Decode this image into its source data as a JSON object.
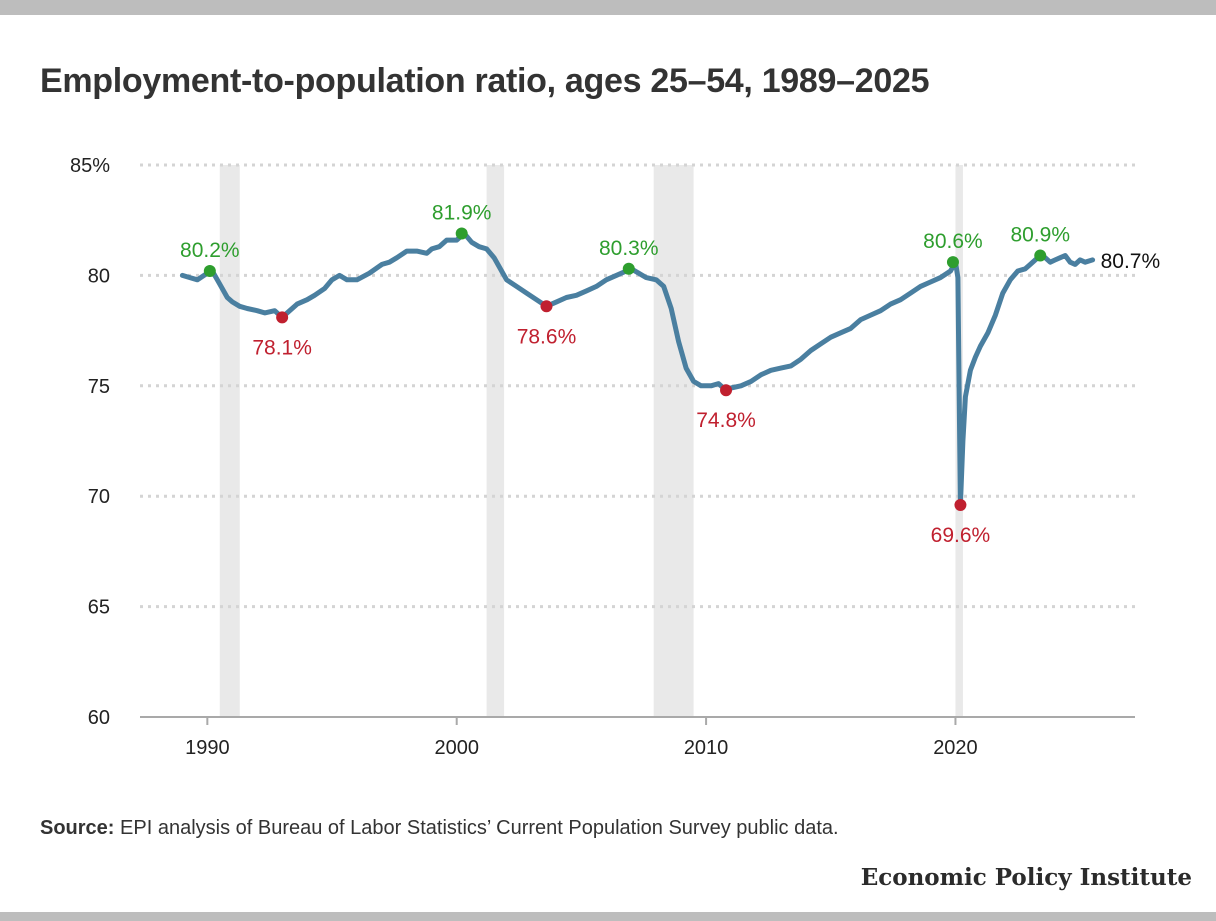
{
  "title": "Employment-to-population ratio, ages 25–54, 1989–2025",
  "source_label": "Source:",
  "source_text": "EPI analysis of Bureau of Labor Statistics’ Current Population Survey public data.",
  "brand": "Economic Policy Institute",
  "colors": {
    "line": "#4a7fa0",
    "peak": "#2e9e2e",
    "trough": "#c0202f",
    "recession": "#e9e9e9",
    "grid": "#d4d4d4"
  },
  "chart_data": {
    "type": "line",
    "title": "Employment-to-population ratio, ages 25–54, 1989–2025",
    "xlim": [
      1987.3,
      2027.2
    ],
    "ylim": [
      60,
      85
    ],
    "xticks": [
      {
        "value": 1990,
        "label": "1990"
      },
      {
        "value": 2000,
        "label": "2000"
      },
      {
        "value": 2010,
        "label": "2010"
      },
      {
        "value": 2020,
        "label": "2020"
      }
    ],
    "yticks": [
      {
        "value": 60,
        "label": "60"
      },
      {
        "value": 65,
        "label": "65"
      },
      {
        "value": 70,
        "label": "70"
      },
      {
        "value": 75,
        "label": "75"
      },
      {
        "value": 80,
        "label": "80"
      },
      {
        "value": 85,
        "label": "85%"
      }
    ],
    "grid": true,
    "recessions": [
      [
        1990.5,
        1991.3
      ],
      [
        2001.2,
        2001.9
      ],
      [
        2007.9,
        2009.5
      ],
      [
        2020.0,
        2020.3
      ]
    ],
    "series": [
      {
        "x": [
          1989.0,
          1989.3,
          1989.6,
          1990.0,
          1990.2,
          1990.5,
          1990.8,
          1991.0,
          1991.3,
          1991.6,
          1992.0,
          1992.3,
          1992.7,
          1993.0,
          1993.3,
          1993.6,
          1994.0,
          1994.3,
          1994.7,
          1995.0,
          1995.3,
          1995.6,
          1996.0,
          1996.5,
          1997.0,
          1997.3,
          1997.6,
          1998.0,
          1998.4,
          1998.8,
          1999.0,
          1999.3,
          1999.6,
          2000.0,
          2000.3,
          2000.6,
          2000.9,
          2001.2,
          2001.5,
          2001.8,
          2002.0,
          2002.4,
          2002.8,
          2003.2,
          2003.6,
          2004.0,
          2004.4,
          2004.8,
          2005.2,
          2005.6,
          2006.0,
          2006.4,
          2006.8,
          2007.0,
          2007.3,
          2007.6,
          2008.0,
          2008.3,
          2008.6,
          2008.9,
          2009.2,
          2009.5,
          2009.8,
          2010.2,
          2010.5,
          2010.8,
          2011.0,
          2011.4,
          2011.8,
          2012.2,
          2012.6,
          2013.0,
          2013.4,
          2013.8,
          2014.2,
          2014.6,
          2015.0,
          2015.4,
          2015.8,
          2016.2,
          2016.6,
          2017.0,
          2017.4,
          2017.8,
          2018.2,
          2018.6,
          2019.0,
          2019.4,
          2019.8,
          2020.0,
          2020.1,
          2020.2,
          2020.3,
          2020.4,
          2020.6,
          2020.8,
          2021.0,
          2021.3,
          2021.6,
          2021.9,
          2022.2,
          2022.5,
          2022.8,
          2023.0,
          2023.2,
          2023.4,
          2023.6,
          2023.8,
          2024.0,
          2024.2,
          2024.4,
          2024.6,
          2024.8,
          2025.0,
          2025.2,
          2025.5
        ],
        "y": [
          80.0,
          79.9,
          79.8,
          80.1,
          80.2,
          79.6,
          79.0,
          78.8,
          78.6,
          78.5,
          78.4,
          78.3,
          78.4,
          78.1,
          78.4,
          78.7,
          78.9,
          79.1,
          79.4,
          79.8,
          80.0,
          79.8,
          79.8,
          80.1,
          80.5,
          80.6,
          80.8,
          81.1,
          81.1,
          81.0,
          81.2,
          81.3,
          81.6,
          81.6,
          81.9,
          81.5,
          81.3,
          81.2,
          80.8,
          80.2,
          79.8,
          79.5,
          79.2,
          78.9,
          78.6,
          78.8,
          79.0,
          79.1,
          79.3,
          79.5,
          79.8,
          80.0,
          80.2,
          80.3,
          80.1,
          79.9,
          79.8,
          79.5,
          78.5,
          77.0,
          75.8,
          75.2,
          75.0,
          75.0,
          75.1,
          74.8,
          74.9,
          75.0,
          75.2,
          75.5,
          75.7,
          75.8,
          75.9,
          76.2,
          76.6,
          76.9,
          77.2,
          77.4,
          77.6,
          78.0,
          78.2,
          78.4,
          78.7,
          78.9,
          79.2,
          79.5,
          79.7,
          79.9,
          80.2,
          80.6,
          79.9,
          69.6,
          72.5,
          74.5,
          75.7,
          76.3,
          76.8,
          77.4,
          78.2,
          79.2,
          79.8,
          80.2,
          80.3,
          80.5,
          80.7,
          80.9,
          80.8,
          80.6,
          80.7,
          80.8,
          80.9,
          80.6,
          80.5,
          80.7,
          80.6,
          80.7
        ]
      }
    ],
    "annotations": [
      {
        "x": 1990.1,
        "y": 80.2,
        "label": "80.2%",
        "kind": "peak"
      },
      {
        "x": 1993.0,
        "y": 78.1,
        "label": "78.1%",
        "kind": "trough"
      },
      {
        "x": 2000.2,
        "y": 81.9,
        "label": "81.9%",
        "kind": "peak"
      },
      {
        "x": 2003.6,
        "y": 78.6,
        "label": "78.6%",
        "kind": "trough"
      },
      {
        "x": 2006.9,
        "y": 80.3,
        "label": "80.3%",
        "kind": "peak"
      },
      {
        "x": 2010.8,
        "y": 74.8,
        "label": "74.8%",
        "kind": "trough"
      },
      {
        "x": 2019.9,
        "y": 80.6,
        "label": "80.6%",
        "kind": "peak"
      },
      {
        "x": 2020.2,
        "y": 69.6,
        "label": "69.6%",
        "kind": "trough"
      },
      {
        "x": 2023.4,
        "y": 80.9,
        "label": "80.9%",
        "kind": "peak"
      },
      {
        "x": 2025.5,
        "y": 80.7,
        "label": "80.7%",
        "kind": "last"
      }
    ]
  }
}
